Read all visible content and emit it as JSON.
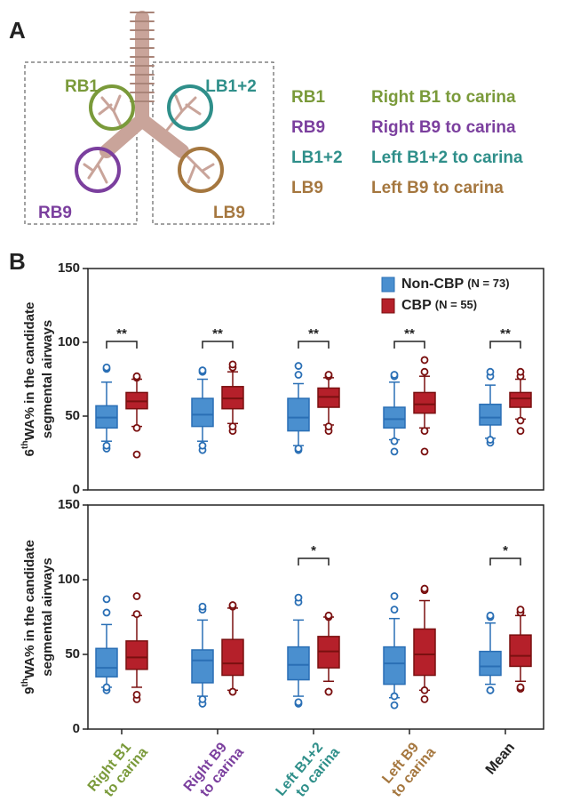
{
  "panel_a": {
    "label": "A",
    "regions": [
      {
        "code": "RB1",
        "description": "Right B1 to carina",
        "color": "#7a9a3a"
      },
      {
        "code": "RB9",
        "description": "Right B9 to carina",
        "color": "#7b3f9e"
      },
      {
        "code": "LB1+2",
        "description": "Left B1+2 to carina",
        "color": "#2f8f8a"
      },
      {
        "code": "LB9",
        "description": "Left B9 to carina",
        "color": "#a5773f"
      }
    ]
  },
  "chart_data": [
    {
      "type": "box",
      "panel_label": "B",
      "ylabel": {
        "number": "6",
        "sup": "th",
        "rest": "WA% in the candidate",
        "line2": "segmental airways"
      },
      "ylim": [
        0,
        150
      ],
      "yticks": [
        0,
        50,
        100,
        150
      ],
      "series": [
        {
          "name": "Non-CBP",
          "n_label": "(N = 73)",
          "color": "#4a8fcf",
          "edge": "#2a6fb5",
          "values": [
            {
              "min": 33,
              "q1": 42,
              "median": 49,
              "q3": 57,
              "max": 73,
              "outliers": [
                28,
                30,
                82,
                83
              ]
            },
            {
              "min": 33,
              "q1": 43,
              "median": 51,
              "q3": 62,
              "max": 75,
              "outliers": [
                27,
                30,
                80,
                81
              ]
            },
            {
              "min": 30,
              "q1": 40,
              "median": 49,
              "q3": 62,
              "max": 72,
              "outliers": [
                27,
                28,
                78,
                84
              ]
            },
            {
              "min": 34,
              "q1": 42,
              "median": 48,
              "q3": 56,
              "max": 73,
              "outliers": [
                26,
                33,
                77,
                78
              ]
            },
            {
              "min": 35,
              "q1": 44,
              "median": 49,
              "q3": 58,
              "max": 71,
              "outliers": [
                32,
                34,
                77,
                80
              ]
            }
          ]
        },
        {
          "name": "CBP",
          "n_label": "(N = 55)",
          "color": "#b5202a",
          "edge": "#7a1010",
          "values": [
            {
              "min": 43,
              "q1": 55,
              "median": 60,
              "q3": 66,
              "max": 75,
              "outliers": [
                24,
                42,
                76,
                77
              ]
            },
            {
              "min": 45,
              "q1": 55,
              "median": 62,
              "q3": 70,
              "max": 80,
              "outliers": [
                40,
                43,
                83,
                85
              ]
            },
            {
              "min": 44,
              "q1": 56,
              "median": 63,
              "q3": 69,
              "max": 76,
              "outliers": [
                40,
                43,
                77,
                78
              ]
            },
            {
              "min": 42,
              "q1": 52,
              "median": 58,
              "q3": 66,
              "max": 77,
              "outliers": [
                26,
                40,
                80,
                88
              ]
            },
            {
              "min": 48,
              "q1": 56,
              "median": 62,
              "q3": 66,
              "max": 75,
              "outliers": [
                40,
                47,
                77,
                80
              ]
            }
          ]
        }
      ],
      "significance": [
        "**",
        "**",
        "**",
        "**",
        "**"
      ]
    },
    {
      "type": "box",
      "ylabel": {
        "number": "9",
        "sup": "th",
        "rest": "WA% in the candidate",
        "line2": "segmental airways"
      },
      "ylim": [
        0,
        150
      ],
      "yticks": [
        0,
        50,
        100,
        150
      ],
      "categories": [
        [
          "Right B1",
          "to carina"
        ],
        [
          "Right B9",
          "to carina"
        ],
        [
          "Left B1+2",
          "to carina"
        ],
        [
          "Left B9",
          "to carina"
        ],
        [
          "Mean"
        ]
      ],
      "category_colors": [
        "#7a9a3a",
        "#7b3f9e",
        "#2f8f8a",
        "#a5773f",
        "#222222"
      ],
      "series": [
        {
          "color": "#4a8fcf",
          "edge": "#2a6fb5",
          "values": [
            {
              "min": 28,
              "q1": 35,
              "median": 41,
              "q3": 54,
              "max": 70,
              "outliers": [
                26,
                28,
                78,
                87
              ]
            },
            {
              "min": 22,
              "q1": 31,
              "median": 46,
              "q3": 53,
              "max": 73,
              "outliers": [
                17,
                20,
                80,
                82
              ]
            },
            {
              "min": 22,
              "q1": 33,
              "median": 43,
              "q3": 55,
              "max": 73,
              "outliers": [
                17,
                18,
                85,
                88
              ]
            },
            {
              "min": 21,
              "q1": 30,
              "median": 44,
              "q3": 55,
              "max": 74,
              "outliers": [
                16,
                22,
                80,
                89
              ]
            },
            {
              "min": 30,
              "q1": 36,
              "median": 42,
              "q3": 52,
              "max": 71,
              "outliers": [
                26,
                26,
                75,
                76
              ]
            }
          ]
        },
        {
          "color": "#b5202a",
          "edge": "#7a1010",
          "values": [
            {
              "min": 28,
              "q1": 40,
              "median": 48,
              "q3": 59,
              "max": 76,
              "outliers": [
                20,
                23,
                77,
                89
              ]
            },
            {
              "min": 26,
              "q1": 36,
              "median": 44,
              "q3": 60,
              "max": 81,
              "outliers": [
                25,
                25,
                82,
                83
              ]
            },
            {
              "min": 32,
              "q1": 41,
              "median": 52,
              "q3": 62,
              "max": 75,
              "outliers": [
                25,
                25,
                75,
                76
              ]
            },
            {
              "min": 26,
              "q1": 36,
              "median": 50,
              "q3": 67,
              "max": 86,
              "outliers": [
                20,
                26,
                93,
                94
              ]
            },
            {
              "min": 32,
              "q1": 42,
              "median": 49,
              "q3": 63,
              "max": 76,
              "outliers": [
                27,
                28,
                78,
                80
              ]
            }
          ]
        }
      ],
      "significance": [
        null,
        null,
        "*",
        null,
        "*"
      ]
    }
  ]
}
